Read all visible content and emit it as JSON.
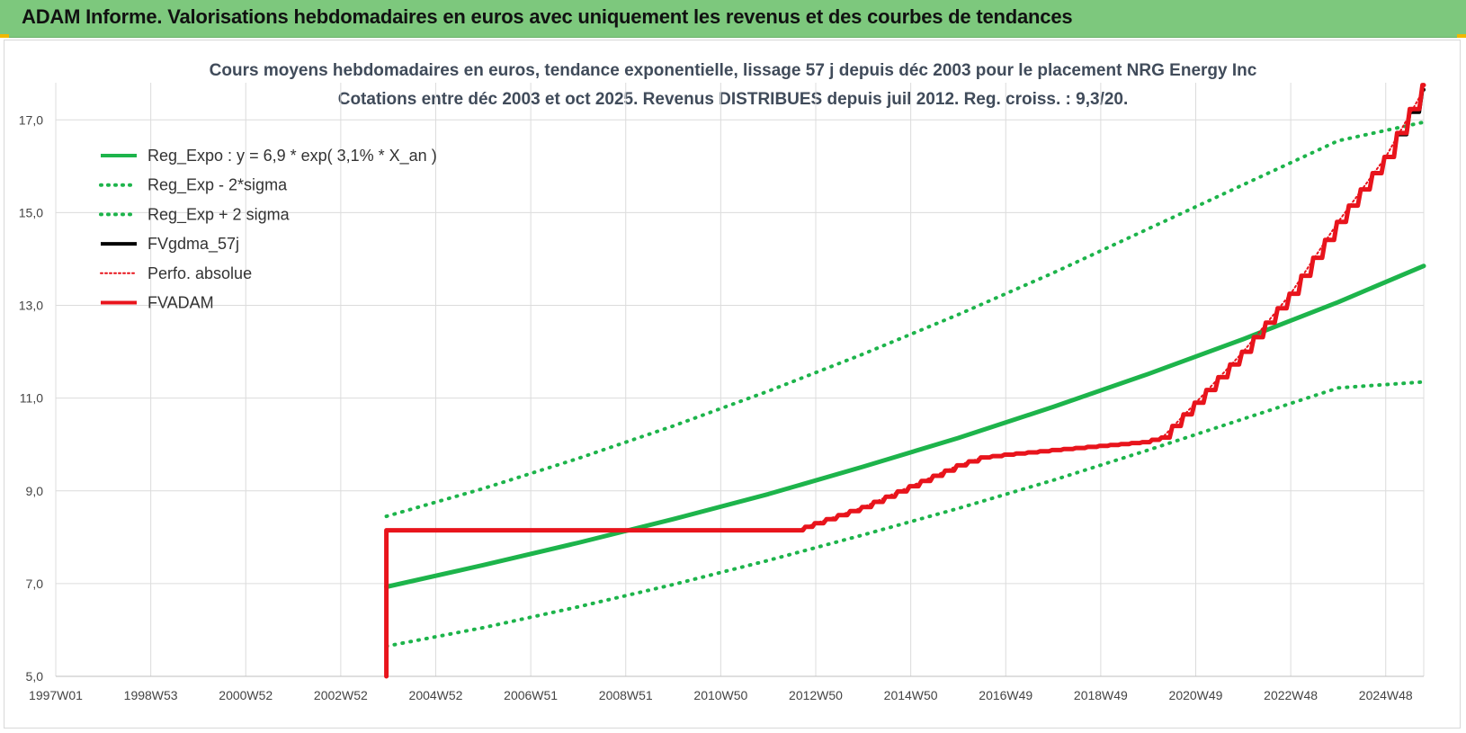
{
  "header": {
    "title": "ADAM Informe. Valorisations hebdomadaires en euros avec uniquement les revenus et des courbes de tendances"
  },
  "colors": {
    "header_bg": "#7dc87d",
    "green": "#1db44b",
    "red": "#e8141c",
    "black": "#000000",
    "grid": "#dcdcdc"
  },
  "chart_data": {
    "type": "line",
    "title": "Cours moyens hebdomadaires en euros, tendance exponentielle, lissage 57 j depuis déc 2003 pour le placement NRG Energy Inc",
    "subtitle": "Cotations entre déc 2003 et oct 2025. Revenus DISTRIBUES depuis juil 2012. Reg. croiss. : 9,3/20.",
    "xlabel": "",
    "ylabel": "",
    "x_range": [
      1997.0,
      2025.8
    ],
    "ylim": [
      5.0,
      17.8
    ],
    "grid": true,
    "legend_position": "top-left",
    "x_tick_labels": [
      {
        "label": "1997W01",
        "x": 1997.0
      },
      {
        "label": "1998W53",
        "x": 1999.0
      },
      {
        "label": "2000W52",
        "x": 2001.0
      },
      {
        "label": "2002W52",
        "x": 2003.0
      },
      {
        "label": "2004W52",
        "x": 2005.0
      },
      {
        "label": "2006W51",
        "x": 2007.0
      },
      {
        "label": "2008W51",
        "x": 2009.0
      },
      {
        "label": "2010W50",
        "x": 2011.0
      },
      {
        "label": "2012W50",
        "x": 2013.0
      },
      {
        "label": "2014W50",
        "x": 2015.0
      },
      {
        "label": "2016W49",
        "x": 2017.0
      },
      {
        "label": "2018W49",
        "x": 2019.0
      },
      {
        "label": "2020W49",
        "x": 2021.0
      },
      {
        "label": "2022W48",
        "x": 2023.0
      },
      {
        "label": "2024W48",
        "x": 2025.0
      }
    ],
    "y_ticks": [
      {
        "label": "5,0",
        "y": 5.0
      },
      {
        "label": "7,0",
        "y": 7.0
      },
      {
        "label": "9,0",
        "y": 9.0
      },
      {
        "label": "11,0",
        "y": 11.0
      },
      {
        "label": "13,0",
        "y": 13.0
      },
      {
        "label": "15,0",
        "y": 15.0
      },
      {
        "label": "17,0",
        "y": 17.0
      }
    ],
    "series": [
      {
        "name": "Reg_Expo : y = 6,9 * exp( 3,1% *  X_an )",
        "color": "#1db44b",
        "style": "solid",
        "x": [
          2003.96,
          2006,
          2008,
          2010,
          2012,
          2014,
          2016,
          2018,
          2020,
          2022,
          2024,
          2025.8
        ],
        "y": [
          6.93,
          7.4,
          7.88,
          8.39,
          8.93,
          9.52,
          10.14,
          10.81,
          11.52,
          12.27,
          13.07,
          13.85
        ]
      },
      {
        "name": "Reg_Exp - 2*sigma",
        "color": "#1db44b",
        "style": "dotted",
        "x": [
          2003.96,
          2006,
          2008,
          2010,
          2012,
          2014,
          2016,
          2018,
          2020,
          2022,
          2024,
          2025.8
        ],
        "y": [
          5.65,
          6.05,
          6.5,
          6.98,
          7.5,
          8.05,
          8.62,
          9.23,
          9.88,
          10.55,
          11.22,
          11.35
        ]
      },
      {
        "name": "Reg_Exp + 2 sigma",
        "color": "#1db44b",
        "style": "dotted",
        "x": [
          2003.96,
          2006,
          2008,
          2010,
          2012,
          2014,
          2016,
          2018,
          2020,
          2022,
          2024,
          2025.8
        ],
        "y": [
          8.45,
          9.05,
          9.7,
          10.4,
          11.15,
          11.95,
          12.8,
          13.7,
          14.65,
          15.6,
          16.55,
          16.95
        ]
      },
      {
        "name": "FVgdma_57j",
        "color": "#000000",
        "style": "solid",
        "x": [
          2003.96,
          2003.96,
          2012.6,
          2013.0,
          2014.0,
          2015.0,
          2016.0,
          2016.5,
          2017.0,
          2018.0,
          2019.0,
          2019.9,
          2020.3,
          2021.0,
          2022.0,
          2023.0,
          2024.0,
          2025.0,
          2025.8
        ],
        "y": [
          5.0,
          8.15,
          8.15,
          8.3,
          8.65,
          9.1,
          9.55,
          9.72,
          9.78,
          9.88,
          9.97,
          10.05,
          10.15,
          10.9,
          12.0,
          13.25,
          14.8,
          16.2,
          17.65
        ]
      },
      {
        "name": "Perfo. absolue",
        "color": "#e8141c",
        "style": "dotted",
        "x": [
          2003.96,
          2003.96,
          2012.6,
          2013.0,
          2014.0,
          2015.0,
          2016.0,
          2016.5,
          2017.0,
          2018.0,
          2019.0,
          2019.9,
          2020.3,
          2021.0,
          2022.0,
          2023.0,
          2024.0,
          2025.0,
          2025.8
        ],
        "y": [
          5.0,
          8.15,
          8.15,
          8.3,
          8.65,
          9.1,
          9.55,
          9.72,
          9.78,
          9.88,
          9.97,
          10.05,
          10.15,
          10.9,
          12.0,
          13.25,
          14.8,
          16.2,
          17.65
        ]
      },
      {
        "name": "FVADAM",
        "color": "#e8141c",
        "style": "solid",
        "x": [
          2003.96,
          2003.96,
          2012.6,
          2013.0,
          2014.0,
          2015.0,
          2016.0,
          2016.5,
          2017.0,
          2018.0,
          2019.0,
          2019.9,
          2020.3,
          2021.0,
          2022.0,
          2023.0,
          2024.0,
          2025.0,
          2025.8
        ],
        "y": [
          5.0,
          8.15,
          8.15,
          8.3,
          8.65,
          9.1,
          9.55,
          9.72,
          9.78,
          9.88,
          9.97,
          10.05,
          10.15,
          10.9,
          12.0,
          13.25,
          14.8,
          16.2,
          17.75
        ]
      }
    ]
  }
}
